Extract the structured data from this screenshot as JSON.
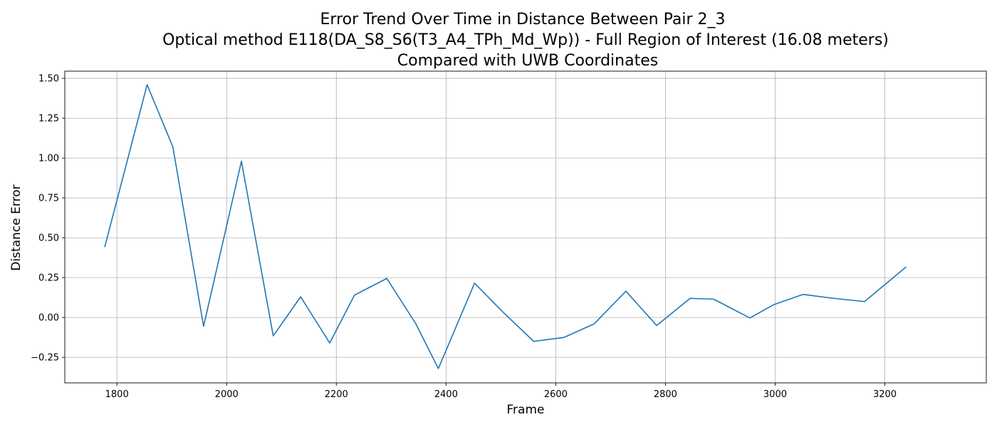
{
  "chart_data": {
    "type": "line",
    "title_lines": [
      "Error Trend Over Time in Distance Between Pair 2_3",
      "Optical method E118(DA_S8_S6(T3_A4_TPh_Md_Wp)) - Full Region of Interest (16.08 meters)",
      "Compared with UWB Coordinates"
    ],
    "xlabel": "Frame",
    "ylabel": "Distance Error",
    "xlim": [
      1705,
      3385
    ],
    "ylim": [
      -0.41,
      1.545
    ],
    "xticks": [
      1800,
      2000,
      2200,
      2400,
      2600,
      2800,
      3000,
      3200
    ],
    "xtick_labels": [
      "1800",
      "2000",
      "2200",
      "2400",
      "2600",
      "2800",
      "3000",
      "3200"
    ],
    "yticks": [
      -0.25,
      0.0,
      0.25,
      0.5,
      0.75,
      1.0,
      1.25,
      1.5
    ],
    "ytick_labels": [
      "−0.25",
      "0.00",
      "0.25",
      "0.50",
      "0.75",
      "1.00",
      "1.25",
      "1.50"
    ],
    "grid": true,
    "series": [
      {
        "color": "#1f77b4",
        "x": [
          1778,
          1855,
          1902,
          1958,
          2027,
          2085,
          2135,
          2188,
          2233,
          2292,
          2345,
          2386,
          2452,
          2505,
          2560,
          2615,
          2670,
          2728,
          2784,
          2845,
          2888,
          2954,
          2997,
          3051,
          3107,
          3163,
          3238
        ],
        "y": [
          0.445,
          1.46,
          1.07,
          -0.055,
          0.98,
          -0.115,
          0.13,
          -0.16,
          0.14,
          0.245,
          -0.04,
          -0.32,
          0.215,
          0.03,
          -0.15,
          -0.125,
          -0.04,
          0.165,
          -0.05,
          0.12,
          0.115,
          -0.003,
          0.08,
          0.145,
          0.12,
          0.1,
          0.315
        ]
      }
    ]
  }
}
